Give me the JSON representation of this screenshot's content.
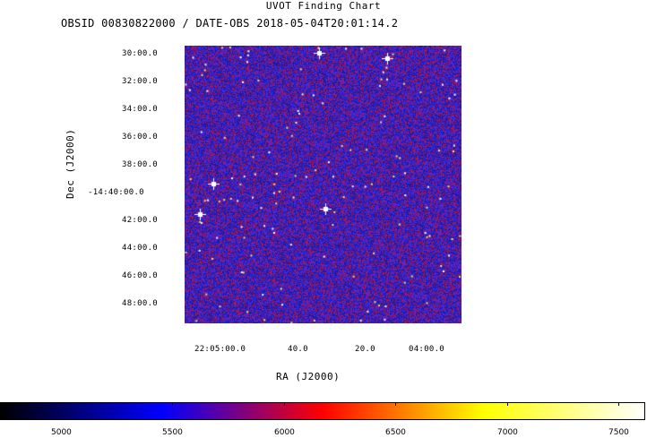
{
  "title": "UVOT Finding Chart",
  "subtitle": "OBSID 00830822000 / DATE-OBS 2018-05-04T20:01:14.2",
  "axes": {
    "xlabel": "RA (J2000)",
    "ylabel": "Dec (J2000)",
    "yticks": [
      "30:00.0",
      "32:00.0",
      "34:00.0",
      "36:00.0",
      "38:00.0",
      "-14:40:00.0",
      "42:00.0",
      "44:00.0",
      "46:00.0",
      "48:00.0"
    ],
    "xticks": [
      "22:05:00.0",
      "40.0",
      "20.0",
      "04:00.0"
    ]
  },
  "colorbar": {
    "ticks": [
      "5000",
      "5500",
      "6000",
      "6500",
      "7000",
      "7500"
    ],
    "colors": [
      "#000000",
      "#0000ff",
      "#ff0000",
      "#ffff00",
      "#ffffff"
    ]
  },
  "image": {
    "background_colors": [
      "#1a1aa8",
      "#2e2ef0",
      "#8a1a9a",
      "#d01010"
    ]
  }
}
